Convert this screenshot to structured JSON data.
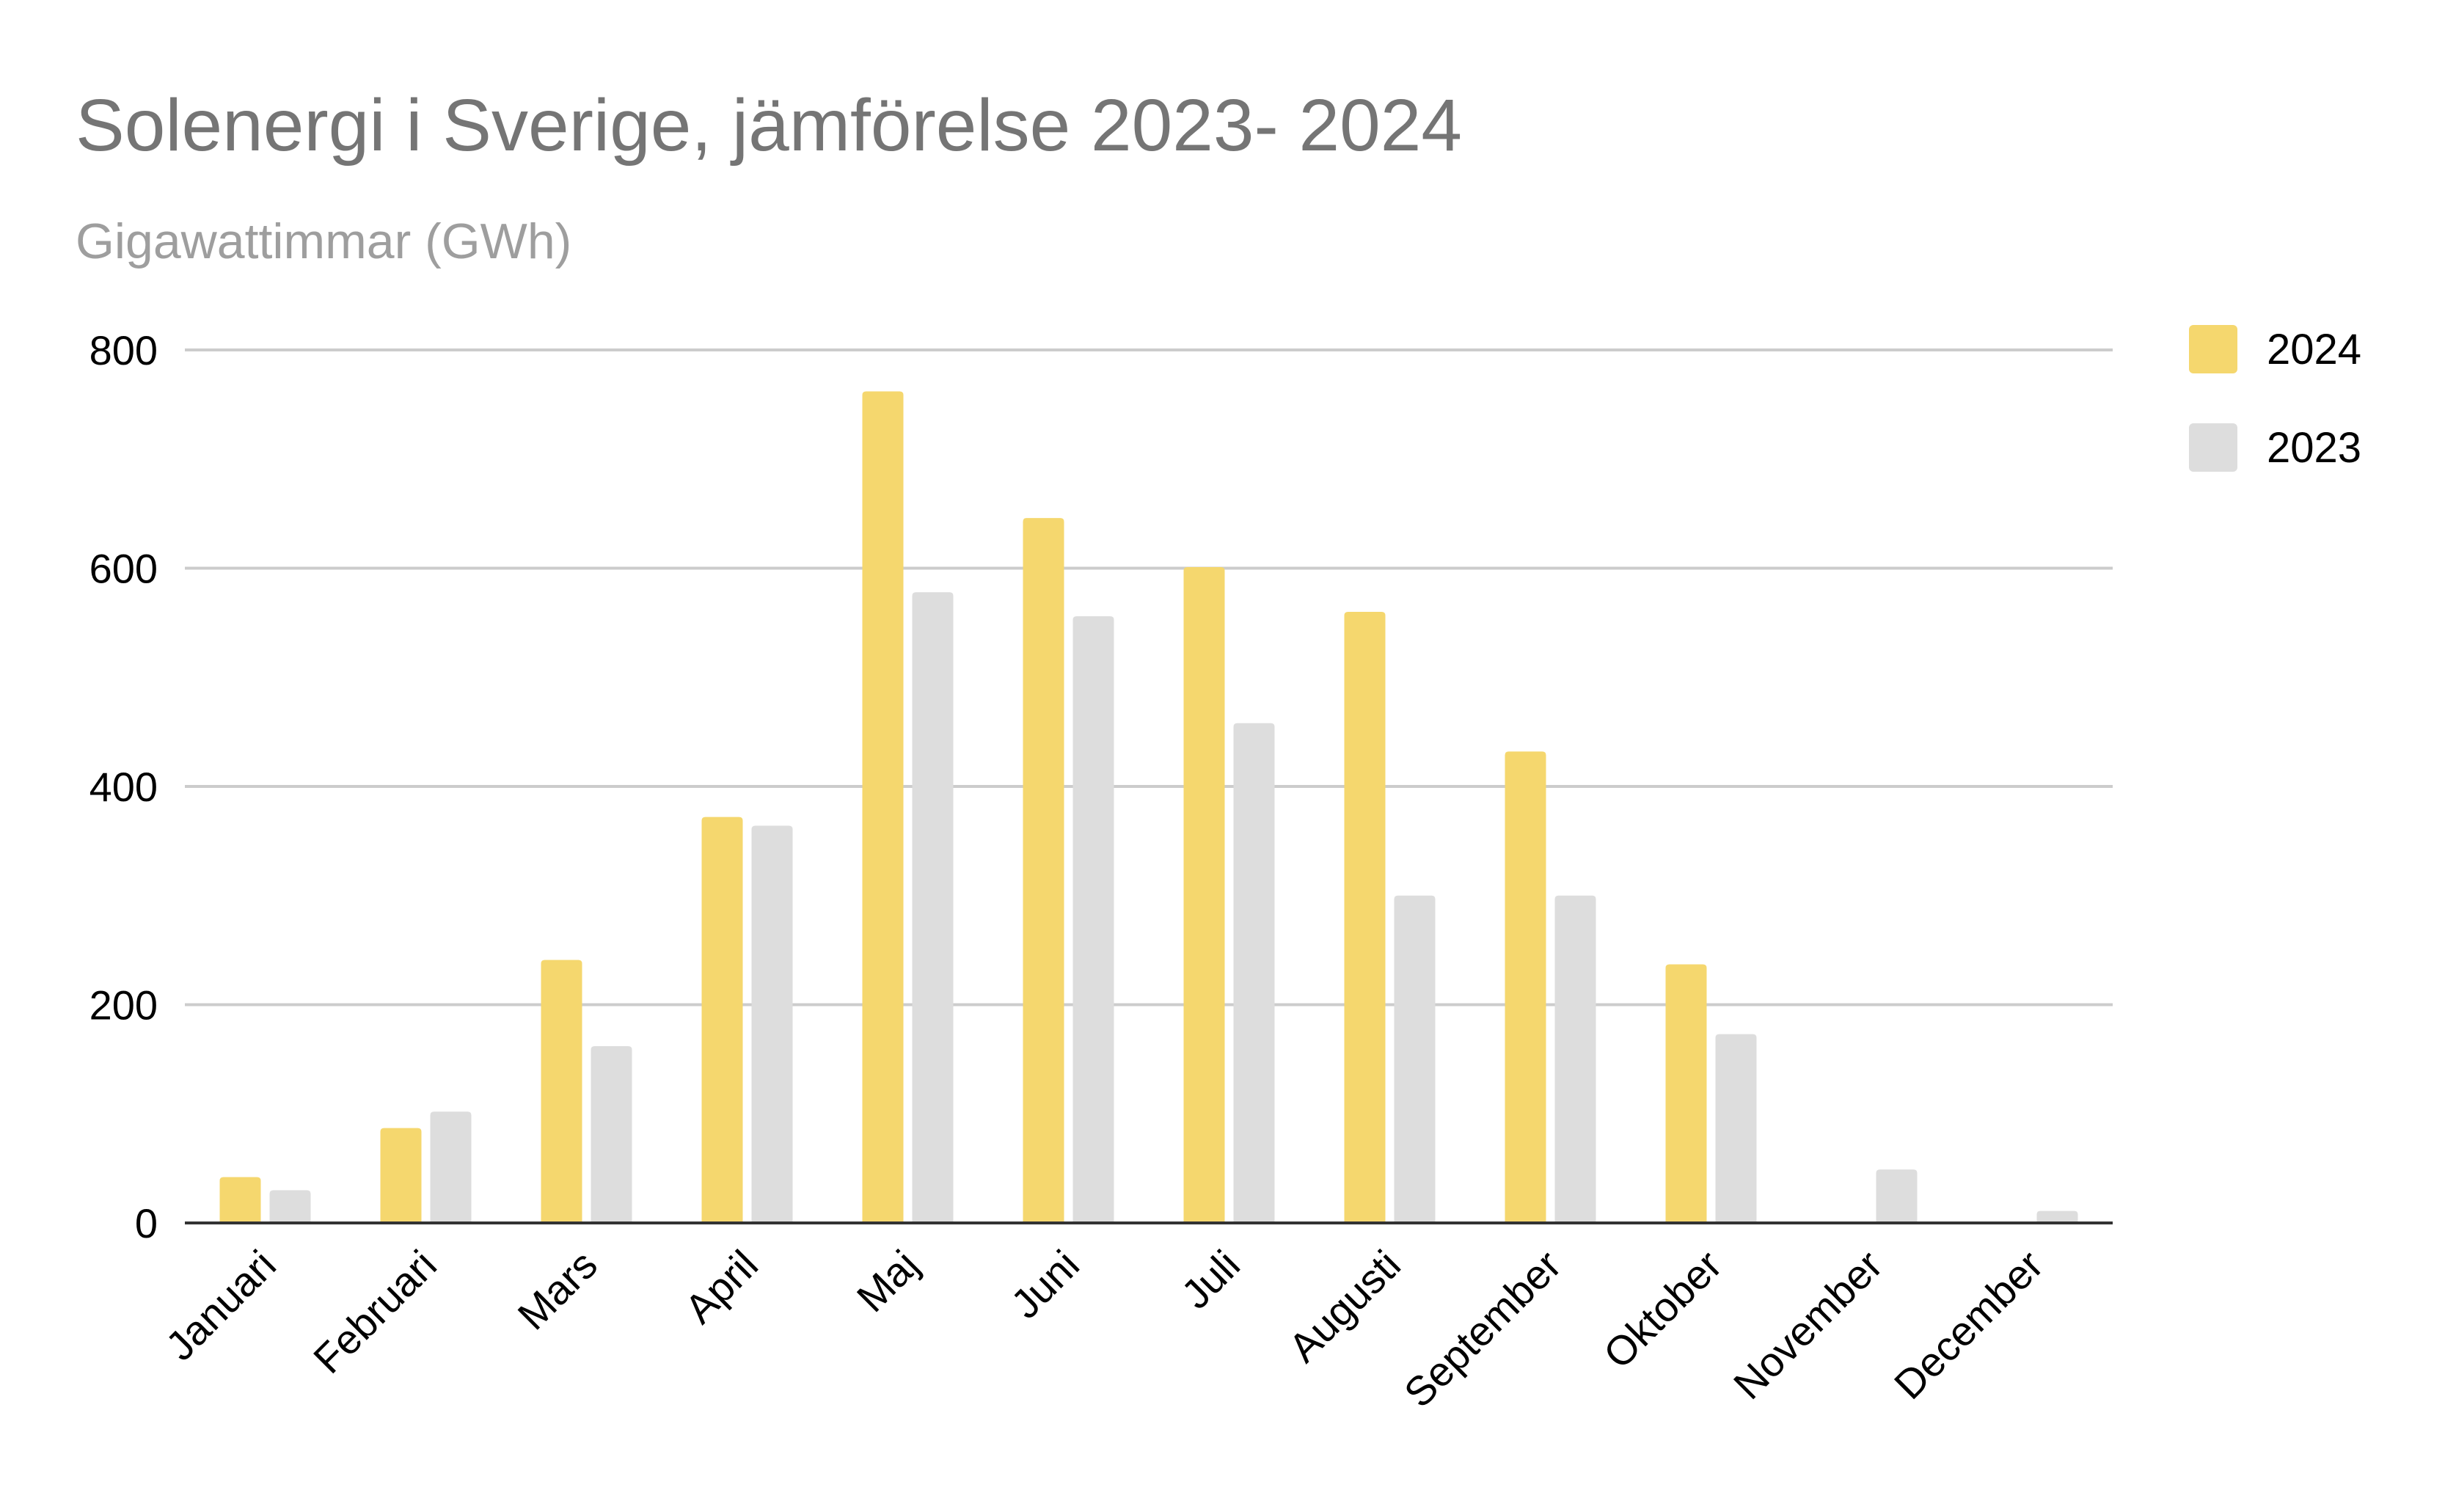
{
  "chart_data": {
    "type": "bar",
    "title": "Solenergi i Sverige, jämförelse 2023- 2024",
    "subtitle": "Gigawattimmar (GWh)",
    "categories": [
      "Januari",
      "Februari",
      "Mars",
      "April",
      "Maj",
      "Juni",
      "Juli",
      "Augusti",
      "September",
      "Oktober",
      "November",
      "December"
    ],
    "series": [
      {
        "name": "2024",
        "color": "#f5d76e",
        "values": [
          42,
          87,
          241,
          372,
          762,
          646,
          601,
          560,
          432,
          237,
          0,
          0
        ]
      },
      {
        "name": "2023",
        "color": "#dddddd",
        "values": [
          30,
          102,
          162,
          364,
          578,
          556,
          458,
          300,
          300,
          173,
          49,
          11
        ]
      }
    ],
    "ylim": [
      0,
      800
    ],
    "yticks": [
      0,
      200,
      400,
      600,
      800
    ],
    "grid": true,
    "legend": "top-right"
  }
}
